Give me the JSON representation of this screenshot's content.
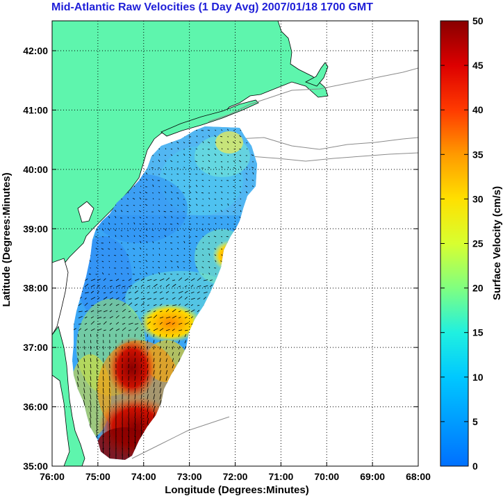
{
  "title": "Mid-Atlantic Raw Velocities (1 Day Avg) 2007/01/18 1700 GMT",
  "map": {
    "xlabel": "Longitude (Degrees:Minutes)",
    "ylabel": "Latitude (Degrees:Minutes)",
    "x_ticks": [
      "76:00",
      "75:00",
      "74:00",
      "73:00",
      "72:00",
      "71:00",
      "70:00",
      "69:00",
      "68:00"
    ],
    "y_ticks": [
      "35:00",
      "36:00",
      "37:00",
      "38:00",
      "39:00",
      "40:00",
      "41:00",
      "42:00"
    ],
    "land_color": "#5ef5ad",
    "grid": "dotted"
  },
  "colorbar": {
    "label": "Surface Velocity (cm/s)",
    "ticks": [
      "0",
      "5",
      "10",
      "15",
      "20",
      "25",
      "30",
      "35",
      "40",
      "45",
      "50"
    ],
    "range": [
      0,
      50
    ]
  }
}
